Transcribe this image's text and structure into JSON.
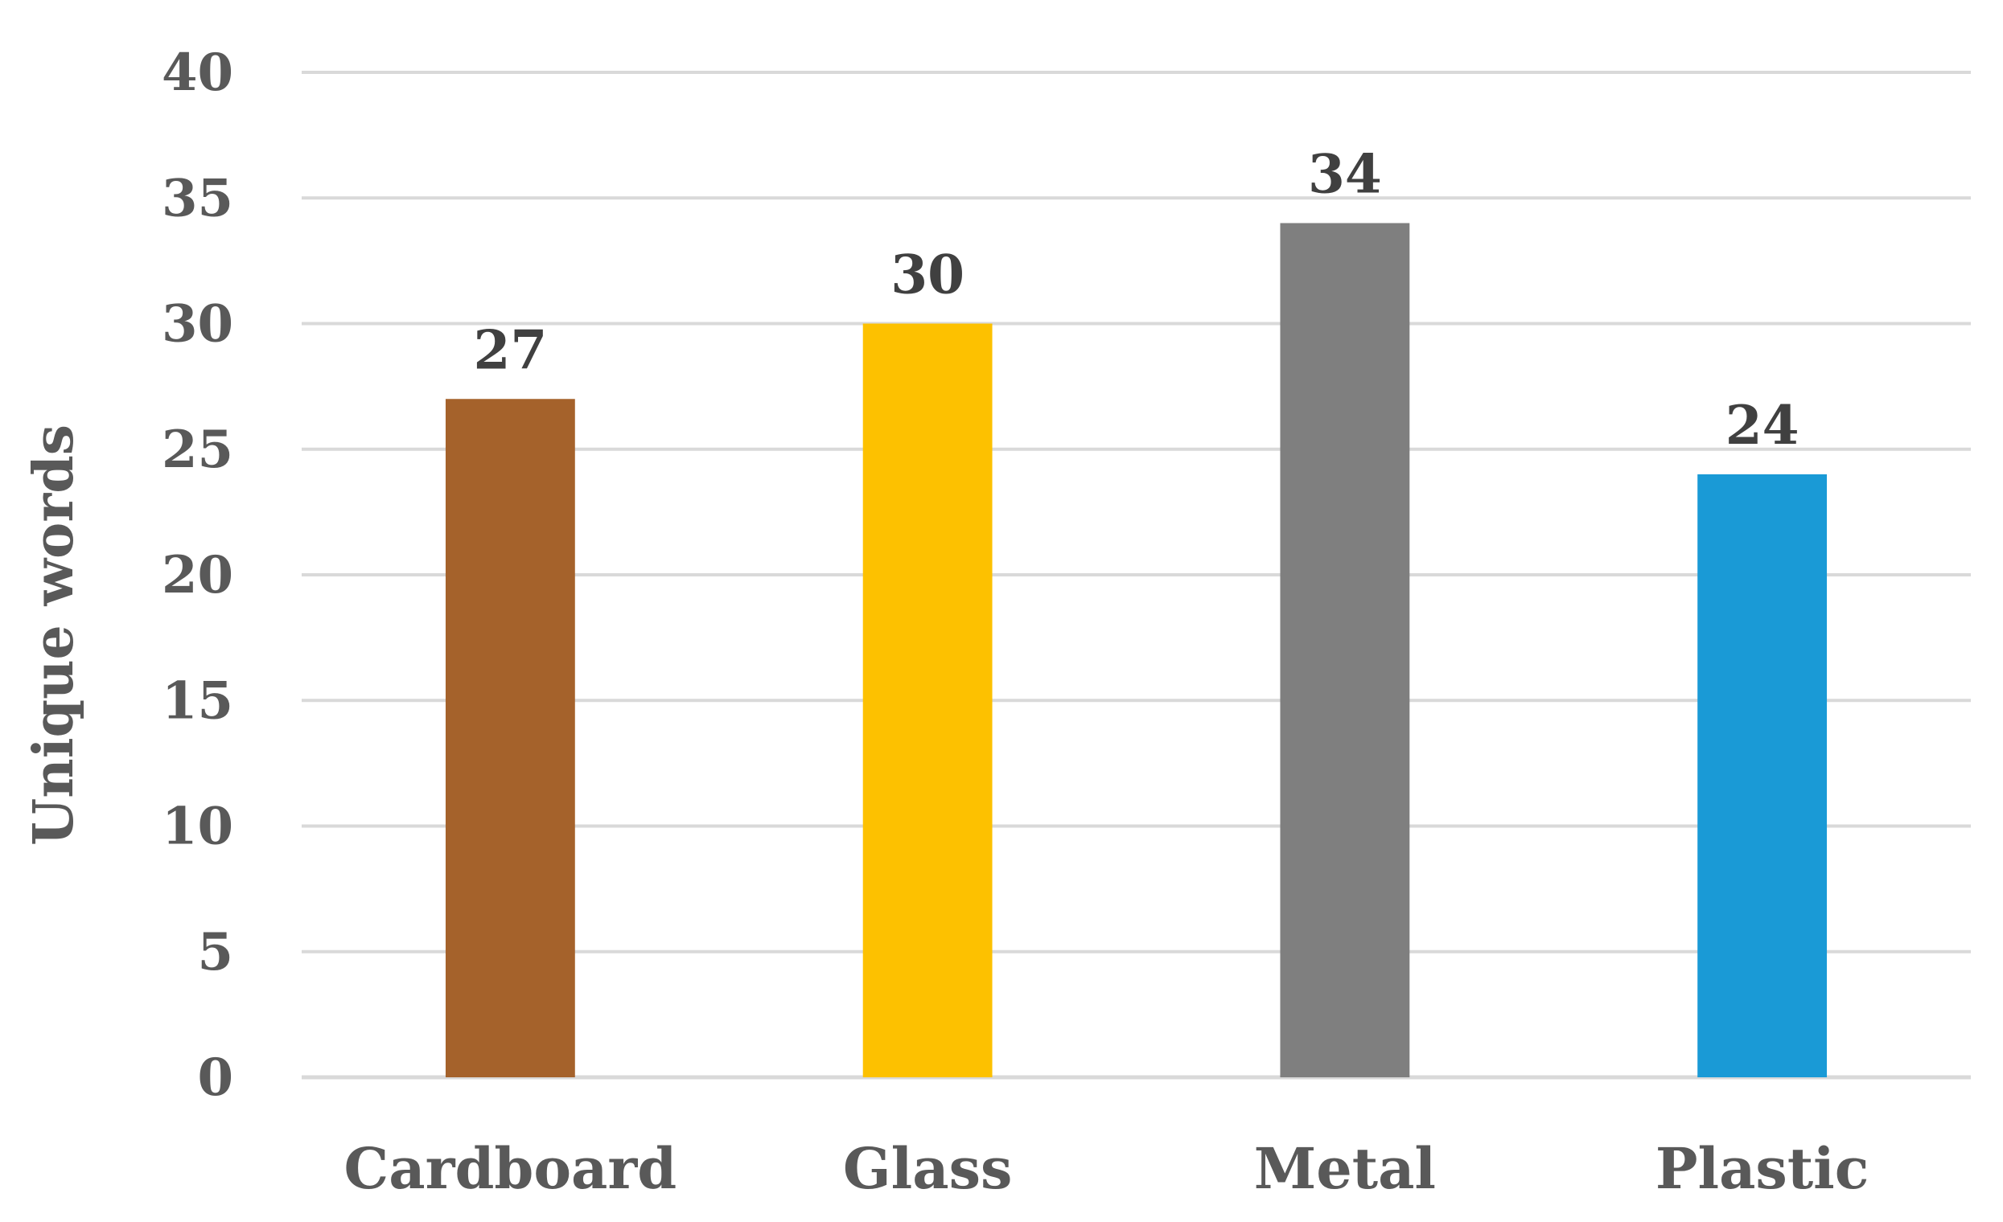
{
  "chart_data": {
    "type": "bar",
    "categories": [
      "Cardboard",
      "Glass",
      "Metal",
      "Plastic"
    ],
    "values": [
      27,
      30,
      34,
      24
    ],
    "data_labels": [
      "27",
      "30",
      "34",
      "24"
    ],
    "bar_colors": [
      "#a5622b",
      "#fdc100",
      "#7f7f7f",
      "#1a9ad6"
    ],
    "title": "",
    "xlabel": "",
    "ylabel": "Unique words",
    "ylim": [
      0,
      40
    ],
    "yticks": [
      0,
      5,
      10,
      15,
      20,
      25,
      30,
      35,
      40
    ],
    "ytick_labels": [
      "0",
      "5",
      "10",
      "15",
      "20",
      "25",
      "30",
      "35",
      "40"
    ],
    "grid": true,
    "legend": "none"
  }
}
